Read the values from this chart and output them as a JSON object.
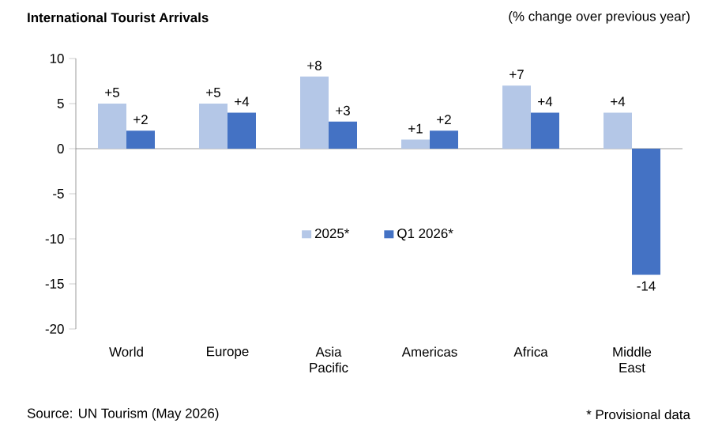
{
  "chart_data": {
    "type": "bar",
    "title": "International Tourist Arrivals",
    "subtitle": "(% change over previous year)",
    "categories": [
      "World",
      "Europe",
      "Asia Pacific",
      "Americas",
      "Africa",
      "Middle East"
    ],
    "series": [
      {
        "name": "2025*",
        "color": "#b4c7e7",
        "values": [
          5,
          5,
          8,
          1,
          7,
          4
        ],
        "value_labels": [
          "+5",
          "+5",
          "+8",
          "+1",
          "+7",
          "+4"
        ]
      },
      {
        "name": "Q1 2026*",
        "color": "#4472c4",
        "values": [
          2,
          4,
          3,
          2,
          4,
          -14
        ],
        "value_labels": [
          "+2",
          "+4",
          "+3",
          "+2",
          "+4",
          "-14"
        ]
      }
    ],
    "ylim": [
      -20,
      10
    ],
    "yticks": [
      -20,
      -15,
      -10,
      -5,
      0,
      5,
      10
    ],
    "legend": "center",
    "annotations": [
      "Source: UN Tourism (May 2026)",
      "* Provisional data"
    ]
  }
}
